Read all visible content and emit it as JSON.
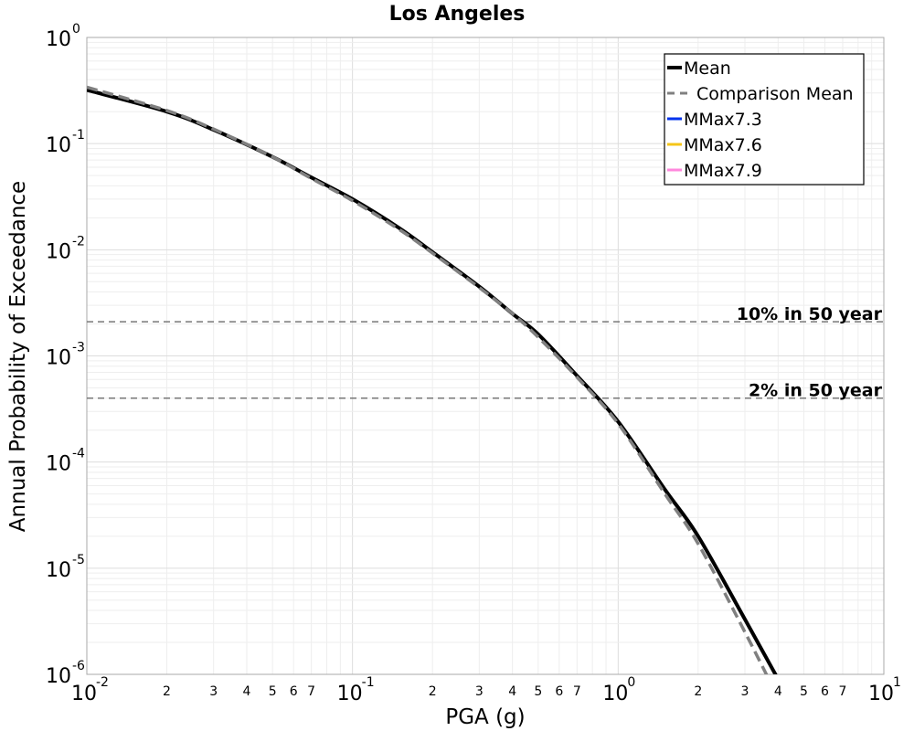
{
  "chart_data": {
    "type": "line",
    "title": "Los Angeles",
    "xlabel": "PGA (g)",
    "ylabel": "Annual Probability of Exceedance",
    "xscale": "log",
    "yscale": "log",
    "xlim": [
      0.01,
      10
    ],
    "ylim": [
      1e-06,
      1
    ],
    "grid": true,
    "legend_position": "top-right",
    "x_major_ticks": [
      {
        "value": 0.01,
        "base": "10",
        "exp": "-2"
      },
      {
        "value": 0.1,
        "base": "10",
        "exp": "-1"
      },
      {
        "value": 1,
        "base": "10",
        "exp": "0"
      },
      {
        "value": 10,
        "base": "10",
        "exp": "1"
      }
    ],
    "x_minor_tick_labels": [
      "2",
      "3",
      "4",
      "5",
      "6",
      "7"
    ],
    "y_major_ticks": [
      {
        "value": 1,
        "base": "10",
        "exp": "0"
      },
      {
        "value": 0.1,
        "base": "10",
        "exp": "-1"
      },
      {
        "value": 0.01,
        "base": "10",
        "exp": "-2"
      },
      {
        "value": 0.001,
        "base": "10",
        "exp": "-3"
      },
      {
        "value": 0.0001,
        "base": "10",
        "exp": "-4"
      },
      {
        "value": 1e-05,
        "base": "10",
        "exp": "-5"
      },
      {
        "value": 1e-06,
        "base": "10",
        "exp": "-6"
      }
    ],
    "series": [
      {
        "name": "Mean",
        "color": "#000000",
        "style": "solid",
        "x": [
          0.01,
          0.02,
          0.03,
          0.05,
          0.07,
          0.1,
          0.15,
          0.2,
          0.3,
          0.4,
          0.5,
          0.7,
          1.0,
          1.5,
          2.0,
          3.0,
          4.0
        ],
        "y": [
          0.32,
          0.2,
          0.135,
          0.075,
          0.048,
          0.03,
          0.016,
          0.0095,
          0.0045,
          0.0025,
          0.0016,
          0.00065,
          0.00024,
          5.5e-05,
          2e-05,
          3.3e-06,
          9e-07
        ]
      },
      {
        "name": "Comparison Mean",
        "color": "#808080",
        "style": "dashed",
        "x": [
          0.01,
          0.02,
          0.03,
          0.05,
          0.07,
          0.1,
          0.15,
          0.2,
          0.3,
          0.4,
          0.5,
          0.7,
          1.0,
          1.5,
          2.0,
          3.0,
          4.0
        ],
        "y": [
          0.34,
          0.205,
          0.137,
          0.075,
          0.047,
          0.029,
          0.0155,
          0.0093,
          0.0044,
          0.0025,
          0.0015,
          0.00063,
          0.00023,
          5e-05,
          1.7e-05,
          2.5e-06,
          6e-07
        ]
      },
      {
        "name": "MMax7.3",
        "color": "#0033ee",
        "style": "solid",
        "x": [],
        "y": []
      },
      {
        "name": "MMax7.6",
        "color": "#f5c518",
        "style": "solid",
        "x": [],
        "y": []
      },
      {
        "name": "MMax7.9",
        "color": "#ff88dd",
        "style": "solid",
        "x": [],
        "y": []
      }
    ],
    "reference_lines": [
      {
        "label": "10% in 50 year",
        "y": 0.0021,
        "color": "#777777"
      },
      {
        "label": "2% in 50 year",
        "y": 0.0004,
        "color": "#777777"
      }
    ]
  }
}
